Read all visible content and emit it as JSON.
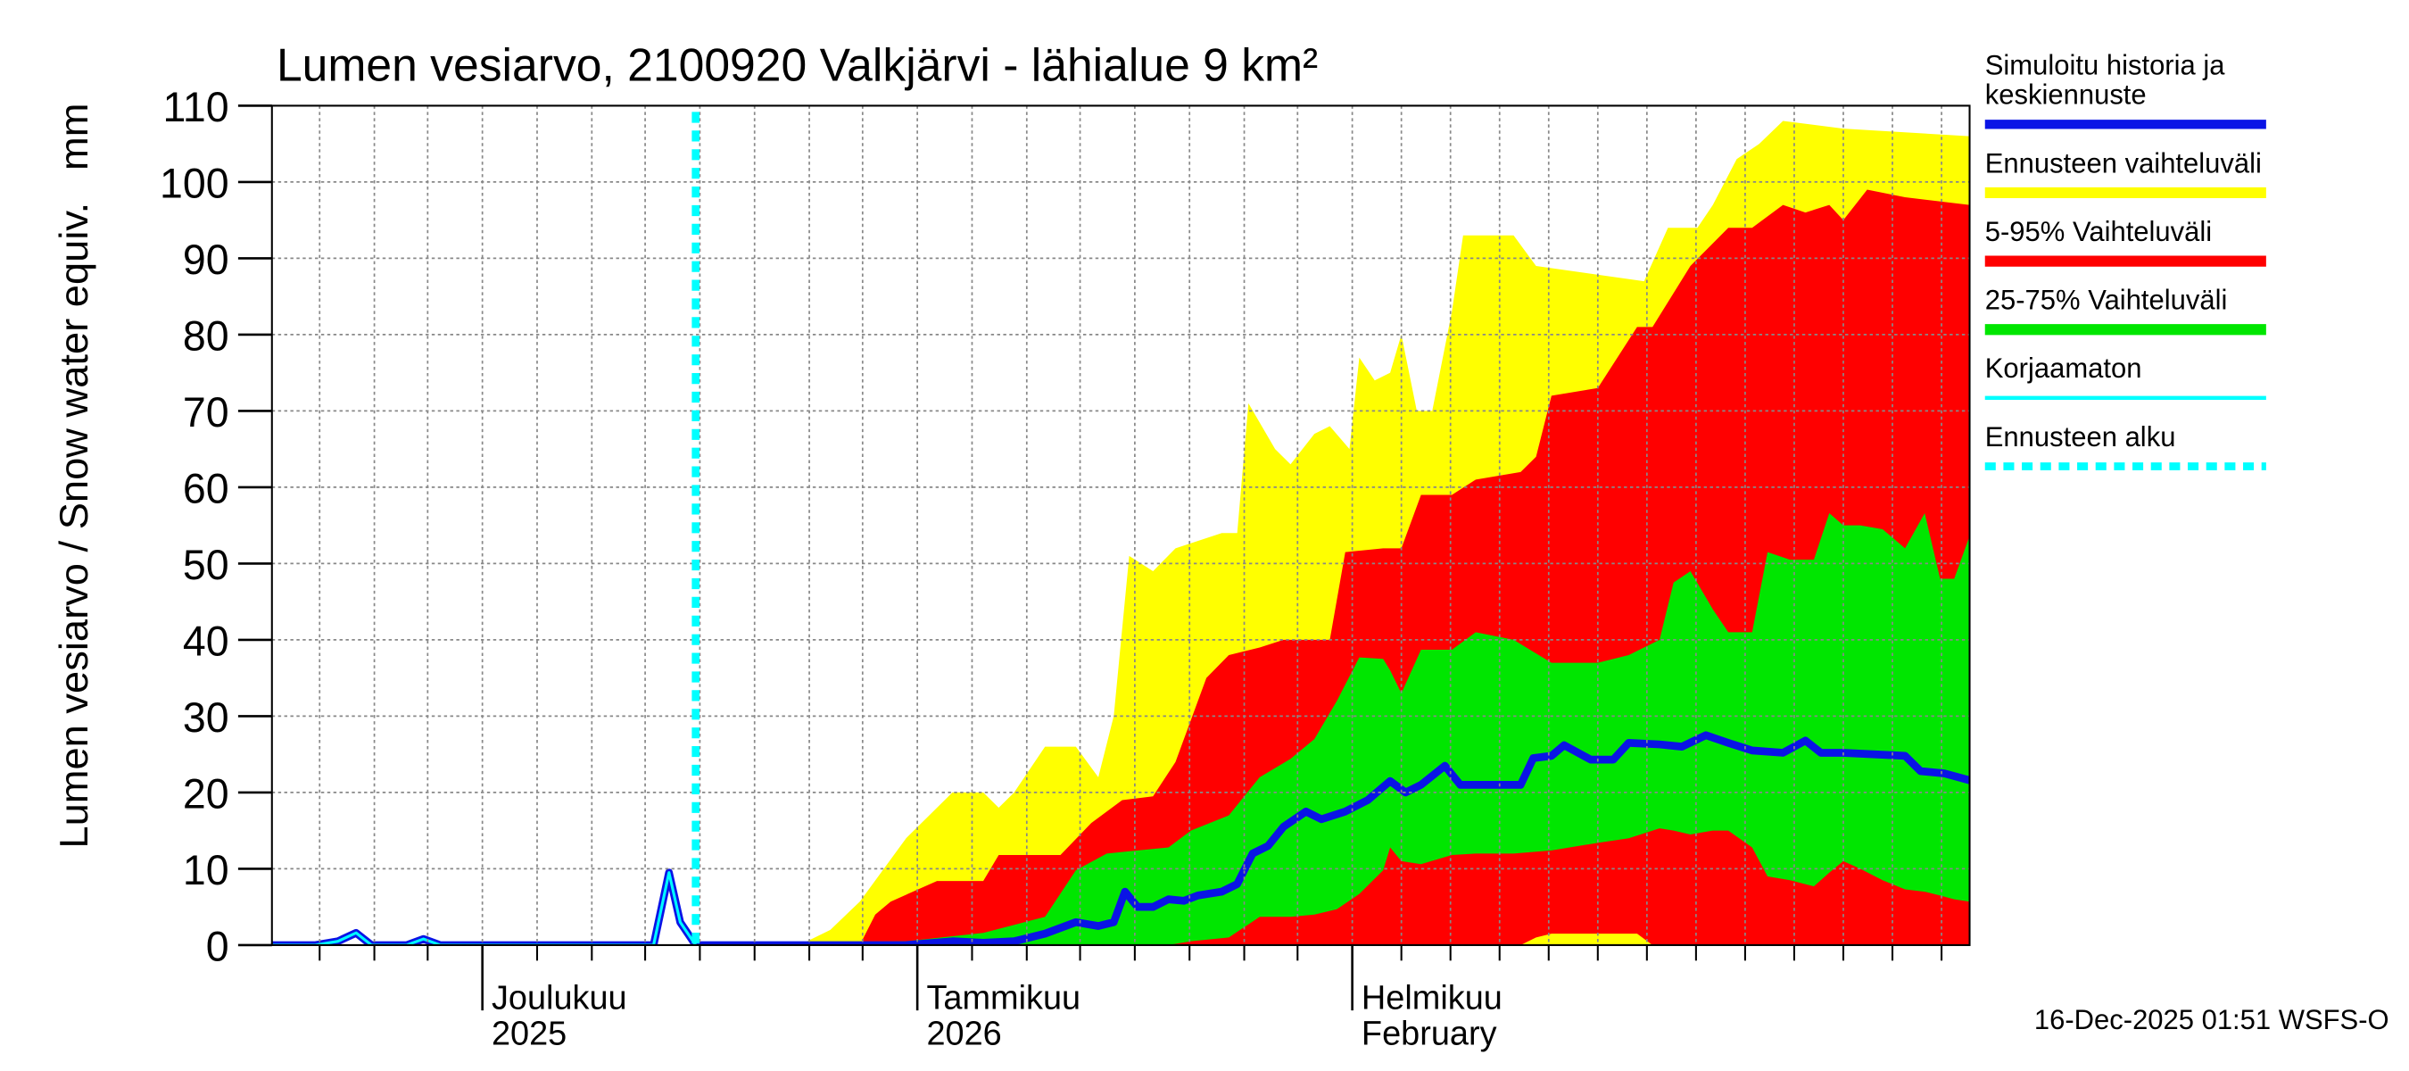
{
  "chart_data": {
    "type": "area",
    "title": "Lumen vesiarvo, 2100920 Valkjärvi - lähialue 9 km²",
    "y_label": "Lumen vesiarvo / Snow water equiv.",
    "y_unit": "mm",
    "footer": "16-Dec-2025 01:51 WSFS-O",
    "xlim": [
      0,
      121
    ],
    "ylim": [
      0,
      110
    ],
    "yticks": [
      0,
      10,
      20,
      30,
      40,
      50,
      60,
      70,
      80,
      90,
      100,
      110
    ],
    "xticks": [
      {
        "value": 15,
        "label": "Joulukuu\n2025"
      },
      {
        "value": 46,
        "label": "Tammikuu\n2026"
      },
      {
        "value": 77,
        "label": "Helmikuu\nFebruary"
      }
    ],
    "xminorticks": [
      3.4,
      7.3,
      11.1,
      18.9,
      22.8,
      26.6,
      30.5,
      34.4,
      38.3,
      42.1,
      49.9,
      53.8,
      57.6,
      61.5,
      65.4,
      69.3,
      73.1,
      80.5,
      84,
      87.5,
      91,
      94.5,
      98,
      101.5,
      105,
      108.5,
      112,
      115.5,
      119
    ],
    "grid": true,
    "series": [
      {
        "name": "Simuloitu historia ja keskiennuste",
        "color": "#0a14e6",
        "style": "line",
        "x": [
          0,
          3.1,
          4.7,
          6,
          7.1,
          9.6,
          10.8,
          12,
          27.2,
          28.3,
          29.1,
          30.2,
          45.2,
          48.5,
          50.7,
          52.9,
          55.1,
          57.3,
          58.9,
          60,
          60.8,
          61.7,
          62.8,
          63.9,
          65,
          66,
          67.7,
          68.8,
          69.9,
          71,
          72.1,
          73.7,
          74.8,
          76.5,
          78.1,
          79.7,
          80.8,
          81.9,
          83.6,
          84.7,
          87.4,
          89,
          89.9,
          91.2,
          92.1,
          94,
          95.6,
          96.7,
          98.9,
          100.5,
          102.2,
          103.8,
          105.5,
          107.7,
          109.3,
          110.4,
          112,
          116.4,
          117.5,
          119.2,
          121
        ],
        "values": [
          0,
          0,
          0.5,
          1.6,
          0,
          0,
          0.8,
          0,
          0,
          9.5,
          3,
          0,
          0,
          0.5,
          0.3,
          0.5,
          1.5,
          3,
          2.5,
          3,
          7,
          5,
          5,
          6,
          5.8,
          6.5,
          7,
          8,
          12,
          13,
          15.5,
          17.5,
          16.5,
          17.5,
          19,
          21.5,
          20,
          21,
          23.5,
          21,
          21,
          21,
          24.5,
          24.8,
          26.2,
          24.3,
          24.3,
          26.5,
          26.3,
          26,
          27.5,
          26.5,
          25.5,
          25.2,
          26.8,
          25.2,
          25.2,
          24.8,
          22.8,
          22.5,
          21.6
        ]
      },
      {
        "name": "Ennusteen vaihteluväli",
        "color": "#ffff00",
        "style": "band",
        "x": [
          30.2,
          37.6,
          39.8,
          41.9,
          45.2,
          48.5,
          50.7,
          51.8,
          52.9,
          55.1,
          57.3,
          58.9,
          60,
          61.1,
          62.8,
          64.4,
          67.7,
          68.8,
          69.6,
          71.5,
          72.6,
          74.3,
          75.4,
          76.8,
          77.5,
          78.6,
          79.7,
          80.5,
          81.6,
          82.7,
          84.1,
          84.9,
          88.5,
          90.1,
          97.8,
          99.5,
          101.6,
          102.7,
          104.4,
          106,
          107.7,
          112,
          121
        ],
        "values": [
          0,
          0,
          2,
          5.7,
          14,
          20,
          20,
          18,
          20,
          26,
          26,
          22,
          30,
          51,
          49,
          52,
          54,
          54,
          71,
          65,
          63,
          67,
          68,
          65,
          77,
          74,
          75,
          80,
          70,
          70,
          83,
          93,
          93,
          89,
          87,
          94,
          94,
          97,
          103,
          105,
          108,
          107,
          106
        ]
      },
      {
        "name": "5-95% Vaihteluväli",
        "color": "#ff0000",
        "style": "band",
        "x": [
          30.2,
          41.9,
          43,
          44.1,
          47.4,
          50.7,
          51.8,
          56.2,
          58.4,
          60.6,
          62.8,
          64.4,
          66.6,
          68.2,
          70.4,
          72.1,
          75.4,
          76.5,
          79.2,
          80.5,
          81.9,
          84.1,
          85.8,
          89,
          90.1,
          91.2,
          94.5,
          97.3,
          98.4,
          101.1,
          103.8,
          105.5,
          107.7,
          109.3,
          111,
          112,
          113.7,
          116.4,
          121
        ],
        "values": [
          0,
          0,
          4,
          5.7,
          8.4,
          8.4,
          11.8,
          11.8,
          16,
          19,
          19.5,
          24,
          35,
          38,
          39,
          40,
          40,
          51.5,
          52,
          52,
          59,
          59,
          61,
          62,
          64,
          72,
          73,
          81,
          81,
          89,
          94,
          94,
          97,
          96,
          97,
          95,
          99,
          98,
          97
        ],
        "lows": [
          0,
          0,
          0,
          0,
          0,
          0,
          0,
          0,
          0,
          0,
          0,
          0,
          0,
          0,
          0,
          0,
          0,
          0,
          0,
          0,
          0,
          0,
          0,
          0,
          1,
          1.5,
          1.5,
          1.5,
          0,
          0,
          0,
          0,
          0,
          0,
          0,
          0,
          0,
          0,
          0
        ]
      },
      {
        "name": "25-75% Vaihteluväli",
        "color": "#00e600",
        "style": "band",
        "x": [
          30.2,
          45.2,
          50.7,
          55.1,
          57.3,
          59.5,
          63.9,
          65.5,
          68.2,
          70.4,
          72.6,
          74.3,
          75.9,
          77.5,
          79.2,
          79.7,
          80.5,
          81.9,
          84.1,
          85.8,
          88.5,
          91.2,
          94.5,
          96.7,
          98.9,
          99.9,
          101.1,
          102.7,
          103.8,
          105.5,
          106.6,
          108.2,
          109.9,
          111,
          112,
          113.2,
          114.8,
          116.4,
          117.8,
          118.9,
          119.9,
          121
        ],
        "values": [
          0,
          0.5,
          1.6,
          3.7,
          9.8,
          12,
          12.8,
          15,
          17,
          22,
          24.4,
          27,
          32,
          37.7,
          37.5,
          36,
          33,
          38.7,
          38.7,
          41,
          40,
          37,
          37,
          38,
          40,
          47.5,
          49,
          44,
          41,
          41,
          51.5,
          50.5,
          50.5,
          56.6,
          55,
          55,
          54.5,
          52,
          56.6,
          48,
          48,
          53.6
        ],
        "lows": [
          0,
          0,
          0,
          0,
          0,
          0,
          0,
          0.5,
          1,
          3.7,
          3.7,
          4,
          4.7,
          6.7,
          9.8,
          12.8,
          11,
          10.6,
          11.8,
          12,
          12,
          12.4,
          13.4,
          14,
          15.3,
          15,
          14.5,
          15,
          15,
          12.8,
          9,
          8.5,
          7.7,
          9.5,
          11,
          10,
          8.5,
          7.3,
          7,
          6.5,
          6,
          5.7
        ]
      },
      {
        "name": "Korjaamaton",
        "color": "#00ffff",
        "style": "line",
        "x": [
          0,
          3.1,
          4.7,
          6,
          7.1,
          9.6,
          10.8,
          12,
          27.2,
          28.3,
          29.1,
          30.2
        ],
        "values": [
          0,
          0,
          0.5,
          1.6,
          0,
          0,
          0.8,
          0,
          0,
          9.5,
          3,
          0
        ]
      }
    ],
    "forecast_start": {
      "name": "Ennusteen alku",
      "x": 30.2,
      "color": "#00ffff"
    }
  }
}
